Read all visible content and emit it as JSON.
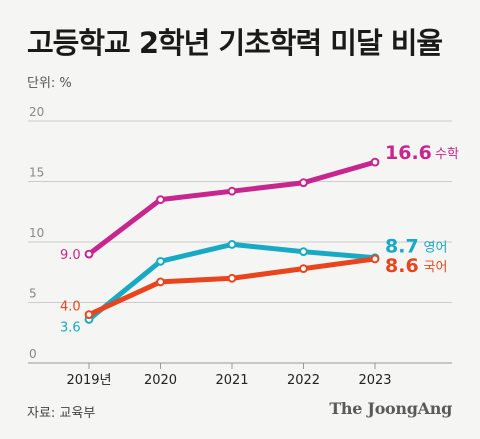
{
  "title": "고등학교 2학년 기초학력 미달 비율",
  "source": "자료: 교육부",
  "logo": "The JoongAng",
  "chart_data": {
    "type": "line",
    "title": "고등학교 2학년 기초학력 미달 비율",
    "unit_label": "단위: %",
    "x": [
      "2019년",
      "2020",
      "2021",
      "2022",
      "2023"
    ],
    "ylim": [
      0,
      20
    ],
    "yticks": [
      "0",
      "5",
      "10",
      "15",
      "20"
    ],
    "grid": true,
    "series": [
      {
        "name": "수학",
        "color": "#c8268f",
        "values": [
          9.0,
          13.5,
          14.2,
          14.9,
          16.6
        ],
        "start_label": "9.0",
        "end_value": "16.6"
      },
      {
        "name": "영어",
        "color": "#18a9c4",
        "values": [
          3.6,
          8.4,
          9.8,
          9.2,
          8.7
        ],
        "start_label": "3.6",
        "end_value": "8.7"
      },
      {
        "name": "국어",
        "color": "#e8451e",
        "values": [
          4.0,
          6.7,
          7.0,
          7.8,
          8.6
        ],
        "start_label": "4.0",
        "end_value": "8.6"
      }
    ]
  }
}
